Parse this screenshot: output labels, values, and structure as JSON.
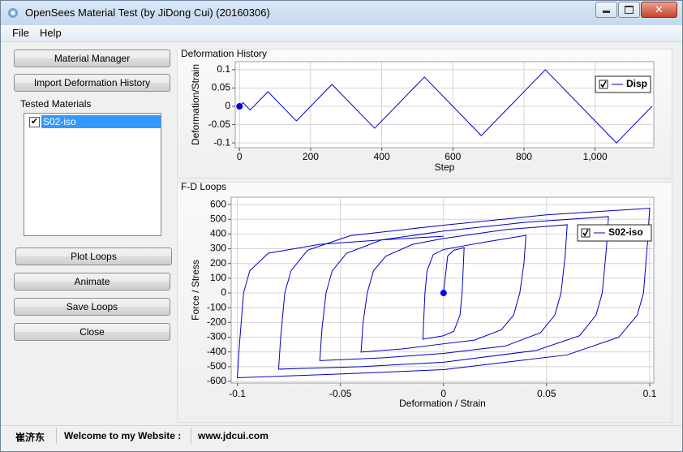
{
  "window": {
    "title": "OpenSees Material Test (by JiDong Cui) (20160306)"
  },
  "menu": [
    "File",
    "Help"
  ],
  "top_buttons": [
    "Material Manager",
    "Import Deformation History"
  ],
  "tested_materials": {
    "label": "Tested Materials",
    "items": [
      {
        "name": "S02-iso",
        "checked": true
      }
    ]
  },
  "bottom_buttons": [
    "Plot Loops",
    "Animate",
    "Save Loops",
    "Close"
  ],
  "status_bar": [
    "崔济东",
    "Welcome to my Website :",
    "www.jdcui.com"
  ],
  "chart_data": [
    {
      "type": "line",
      "title": "Deformation History",
      "x_label": "Step",
      "y_label": "Deformation/Strain",
      "x": [
        0,
        10,
        30,
        80,
        160,
        260,
        380,
        520,
        680,
        860,
        1060,
        1160
      ],
      "series": [
        {
          "name": "Disp",
          "color": "#0000c0",
          "values": [
            0,
            0.01,
            -0.01,
            0.04,
            -0.04,
            0.06,
            -0.06,
            0.08,
            -0.08,
            0.1,
            -0.1,
            0
          ]
        }
      ],
      "marker": {
        "x": 0,
        "y": 0,
        "color": "#0000e0"
      },
      "xlim": [
        -12,
        1165
      ],
      "ylim": [
        -0.113,
        0.122
      ],
      "xticks": [
        0,
        200,
        400,
        600,
        800,
        {
          "value": 1000,
          "label": "1,000"
        }
      ],
      "yticks": [
        0.1,
        0.05,
        0,
        -0.05,
        -0.1
      ],
      "grid": true,
      "legend": "top-right",
      "legend_checked": true
    },
    {
      "type": "line",
      "title": "F-D Loops",
      "x_label": "Deformation / Strain",
      "y_label": "Force / Stress",
      "x": [
        0,
        0.002,
        0.005,
        0.01,
        0.0095,
        0.009,
        0.008,
        0.005,
        0,
        -0.01,
        -0.0095,
        -0.009,
        -0.008,
        -0.005,
        0,
        0.01,
        0.02,
        0.04,
        0.039,
        0.037,
        0.034,
        0.028,
        0.015,
        0,
        -0.02,
        -0.04,
        -0.039,
        -0.037,
        -0.034,
        -0.028,
        -0.015,
        0,
        0.03,
        0.06,
        0.059,
        0.057,
        0.054,
        0.047,
        0.03,
        0,
        -0.03,
        -0.06,
        -0.059,
        -0.057,
        -0.054,
        -0.047,
        -0.03,
        0,
        0.04,
        0.08,
        0.079,
        0.077,
        0.074,
        0.066,
        0.045,
        0,
        -0.04,
        -0.08,
        -0.079,
        -0.077,
        -0.074,
        -0.066,
        -0.045,
        0,
        0.05,
        0.1,
        0.099,
        0.097,
        0.094,
        0.085,
        0.06,
        0,
        -0.05,
        -0.1,
        -0.099,
        -0.097,
        -0.094,
        -0.085,
        -0.06,
        -0.03,
        0
      ],
      "series": [
        {
          "name": "S02-iso",
          "color": "#0000c0",
          "values": [
            0,
            250,
            290,
            308,
            150,
            0,
            -150,
            -260,
            -290,
            -314,
            -150,
            0,
            150,
            260,
            295,
            320,
            345,
            391,
            200,
            0,
            -150,
            -250,
            -320,
            -345,
            -380,
            -401,
            -200,
            0,
            150,
            250,
            330,
            370,
            430,
            463,
            250,
            0,
            -150,
            -270,
            -360,
            -410,
            -440,
            -459,
            -250,
            0,
            150,
            270,
            360,
            420,
            480,
            518,
            300,
            0,
            -150,
            -290,
            -390,
            -470,
            -500,
            -517,
            -300,
            0,
            150,
            290,
            390,
            460,
            530,
            575,
            350,
            0,
            -150,
            -300,
            -420,
            -520,
            -550,
            -575,
            -350,
            0,
            150,
            270,
            330,
            360,
            385
          ]
        }
      ],
      "marker": {
        "x": 0,
        "y": 0,
        "color": "#0000e0"
      },
      "xlim": [
        -0.103,
        0.102
      ],
      "ylim": [
        -611,
        650
      ],
      "xticks": [
        -0.1,
        -0.05,
        0,
        0.05,
        0.1
      ],
      "yticks": [
        600,
        500,
        400,
        300,
        200,
        100,
        0,
        -100,
        -200,
        -300,
        -400,
        -500,
        -600
      ],
      "grid": true,
      "legend": "top-right",
      "legend_checked": true
    }
  ]
}
